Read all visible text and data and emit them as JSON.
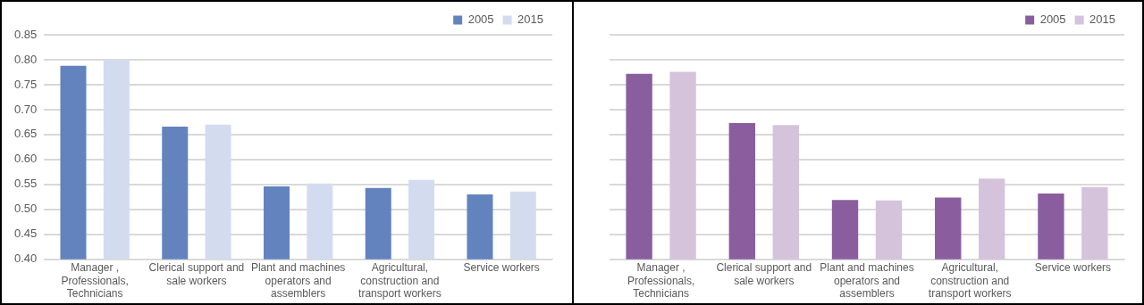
{
  "chart_data": [
    {
      "type": "bar",
      "categories": [
        "Manager , Professionals, Technicians",
        "Clerical support and sale workers",
        "Plant and machines operators and assemblers",
        "Agricultural, construction and transport workers",
        "Service workers"
      ],
      "series": [
        {
          "name": "2005",
          "color": "#6383bf",
          "values": [
            0.788,
            0.666,
            0.546,
            0.543,
            0.53
          ]
        },
        {
          "name": "2015",
          "color": "#d3dcef",
          "values": [
            0.8,
            0.67,
            0.552,
            0.559,
            0.536
          ]
        }
      ],
      "ylim": [
        0.4,
        0.85
      ],
      "yticks": [
        {
          "value": 0.4,
          "label": "0.40"
        },
        {
          "value": 0.45,
          "label": "0.45"
        },
        {
          "value": 0.5,
          "label": "0.50"
        },
        {
          "value": 0.55,
          "label": "0.55"
        },
        {
          "value": 0.6,
          "label": "0.60"
        },
        {
          "value": 0.65,
          "label": "0.65"
        },
        {
          "value": 0.7,
          "label": "0.70"
        },
        {
          "value": 0.75,
          "label": "0.75"
        },
        {
          "value": 0.8,
          "label": "0.80"
        },
        {
          "value": 0.85,
          "label": "0.85"
        }
      ],
      "grid": "y",
      "legend": "top right"
    },
    {
      "type": "bar",
      "categories": [
        "Manager , Professionals, Technicians",
        "Clerical support and sale workers",
        "Plant and machines operators and assemblers",
        "Agricultural, construction and transport workers",
        "Service workers"
      ],
      "series": [
        {
          "name": "2005",
          "color": "#8a5e9e",
          "values": [
            0.772,
            0.673,
            0.519,
            0.524,
            0.532
          ]
        },
        {
          "name": "2015",
          "color": "#d5c3dc",
          "values": [
            0.776,
            0.669,
            0.518,
            0.562,
            0.545
          ]
        }
      ],
      "ylim": [
        0.4,
        0.85
      ],
      "yticks": [
        {
          "value": 0.4,
          "label": null
        },
        {
          "value": 0.45,
          "label": null
        },
        {
          "value": 0.5,
          "label": null
        },
        {
          "value": 0.55,
          "label": null
        },
        {
          "value": 0.6,
          "label": null
        },
        {
          "value": 0.65,
          "label": null
        },
        {
          "value": 0.7,
          "label": null
        },
        {
          "value": 0.75,
          "label": null
        },
        {
          "value": 0.8,
          "label": null
        },
        {
          "value": 0.85,
          "label": null
        }
      ],
      "grid": "y",
      "legend": "top right",
      "tick_labels": "x"
    }
  ]
}
